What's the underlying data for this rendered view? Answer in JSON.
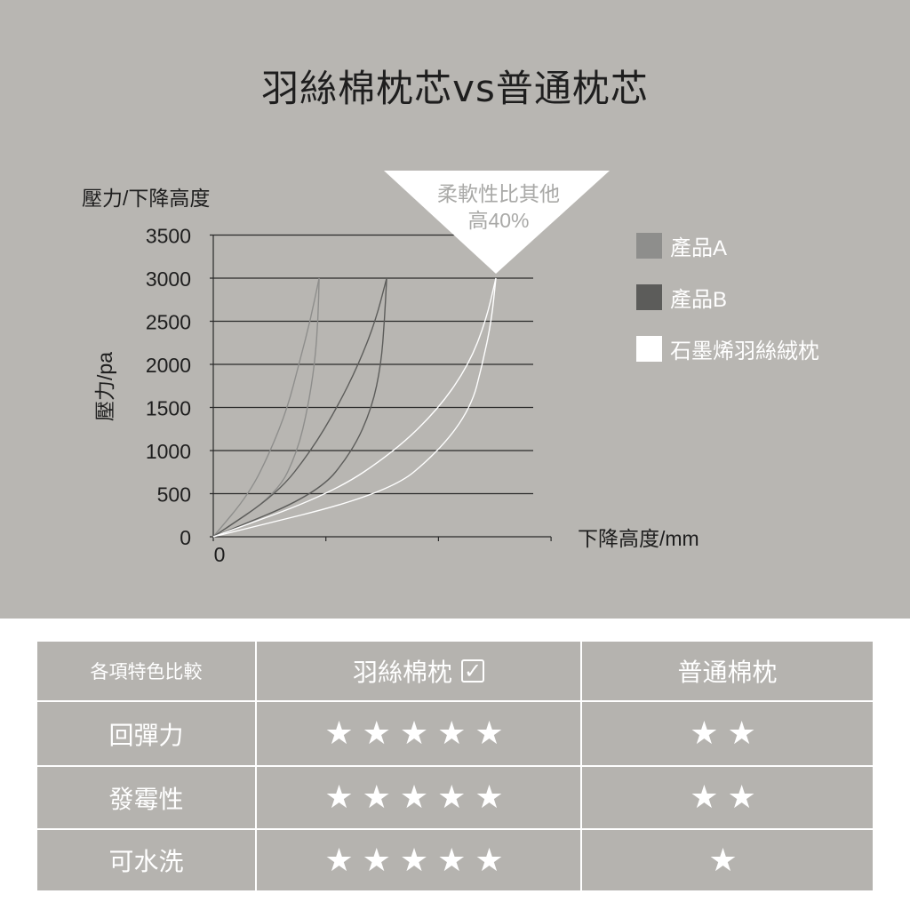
{
  "title": "羽絲棉枕芯vs普通枕芯",
  "colors": {
    "background": "#b8b6b2",
    "product_a": "#8e8e8c",
    "product_b": "#5c5c5a",
    "graphene": "#ffffff",
    "table_bg": "#b5b3af"
  },
  "callout": {
    "line1": "柔軟性比其他",
    "line2": "高40%"
  },
  "chart_data": {
    "type": "line",
    "title": "壓力/下降高度",
    "ylabel": "壓力/pa",
    "xlabel": "下降高度/mm",
    "ylim": [
      0,
      3500
    ],
    "yticks": [
      "0",
      "500",
      "1000",
      "1500",
      "2000",
      "2500",
      "3000",
      "3500"
    ],
    "xticks": [
      "0",
      "",
      "",
      ""
    ],
    "xlim": [
      0,
      3
    ],
    "grid": true,
    "legend_position": "right",
    "y_levels": [
      0,
      500,
      1000,
      1500,
      2000,
      2500,
      3000
    ],
    "series": [
      {
        "name": "產品A",
        "color": "#8e8e8c",
        "curves": [
          [
            0,
            0.32,
            0.51,
            0.66,
            0.76,
            0.86,
            0.94
          ],
          [
            0,
            0.57,
            0.75,
            0.84,
            0.9,
            0.93,
            0.94
          ]
        ]
      },
      {
        "name": "產品B",
        "color": "#5c5c5a",
        "curves": [
          [
            0,
            0.57,
            0.87,
            1.1,
            1.29,
            1.44,
            1.54
          ],
          [
            0,
            0.93,
            1.24,
            1.41,
            1.49,
            1.52,
            1.54
          ]
        ]
      },
      {
        "name": "石墨烯羽絲絨枕",
        "color": "#ffffff",
        "curves": [
          [
            0,
            1.05,
            1.62,
            2.01,
            2.27,
            2.42,
            2.51
          ],
          [
            0,
            1.55,
            2.01,
            2.29,
            2.39,
            2.47,
            2.51
          ]
        ]
      }
    ]
  },
  "table": {
    "headers": [
      "各項特色比較",
      "羽絲棉枕",
      "普通棉枕"
    ],
    "check_icon": "checkbox-checked-icon",
    "rows": [
      {
        "label": "回彈力",
        "a": 5,
        "b": 2
      },
      {
        "label": "發霉性",
        "a": 5,
        "b": 2
      },
      {
        "label": "可水洗",
        "a": 5,
        "b": 1
      }
    ]
  }
}
